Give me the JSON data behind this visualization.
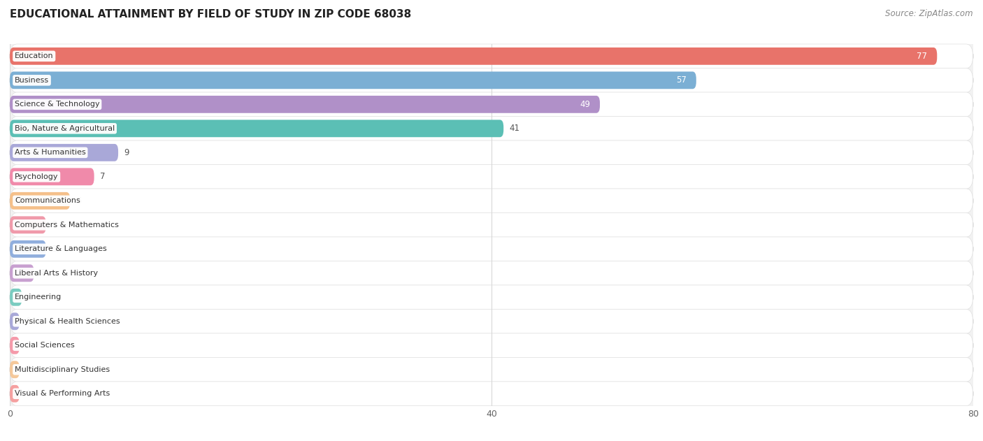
{
  "title": "EDUCATIONAL ATTAINMENT BY FIELD OF STUDY IN ZIP CODE 68038",
  "source": "Source: ZipAtlas.com",
  "categories": [
    "Education",
    "Business",
    "Science & Technology",
    "Bio, Nature & Agricultural",
    "Arts & Humanities",
    "Psychology",
    "Communications",
    "Computers & Mathematics",
    "Literature & Languages",
    "Liberal Arts & History",
    "Engineering",
    "Physical & Health Sciences",
    "Social Sciences",
    "Multidisciplinary Studies",
    "Visual & Performing Arts"
  ],
  "values": [
    77,
    57,
    49,
    41,
    9,
    7,
    5,
    3,
    3,
    2,
    1,
    0,
    0,
    0,
    0
  ],
  "bar_colors": [
    "#E8736A",
    "#7BAFD4",
    "#B090C8",
    "#5BBFB5",
    "#A9A8D8",
    "#F08AAA",
    "#F5C08A",
    "#F09AAA",
    "#90AEDD",
    "#C8A0D0",
    "#7ACCC0",
    "#A8A8D8",
    "#F59AAA",
    "#F5C89A",
    "#F5A0A0"
  ],
  "value_label_white": [
    true,
    true,
    true,
    false,
    false,
    false,
    false,
    false,
    false,
    false,
    false,
    false,
    false,
    false,
    false
  ],
  "xlim": [
    0,
    80
  ],
  "xticks": [
    0,
    40,
    80
  ],
  "fig_bg": "#ffffff",
  "row_bg": "#ffffff",
  "plot_bg": "#f2f2f2",
  "grid_color": "#d8d8d8",
  "title_fontsize": 11,
  "source_fontsize": 8.5
}
